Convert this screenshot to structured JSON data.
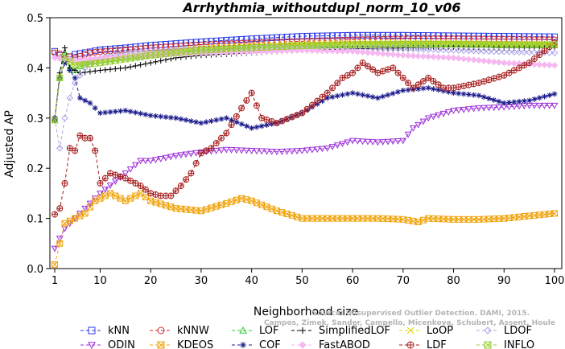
{
  "chart_data": {
    "type": "line",
    "title": "Arrhythmia_withoutdupl_norm_10_v06",
    "xlabel": "Neighborhood size",
    "ylabel": "Adjusted AP",
    "xlim": [
      1,
      100
    ],
    "ylim": [
      0.0,
      0.5
    ],
    "xticks": [
      1,
      10,
      20,
      30,
      40,
      50,
      60,
      70,
      80,
      90,
      100
    ],
    "yticks": [
      "0.0",
      "0.1",
      "0.2",
      "0.3",
      "0.4",
      "0.5"
    ],
    "grid": false,
    "legend_position": "bottom",
    "watermark": [
      "Source: Unsupervised Outlier Detection. DAMI, 2015.",
      "Campos, Zimek, Sander, Campello, Micenkova, Schubert, Assent, Houle"
    ],
    "series": [
      {
        "name": "kNN",
        "color": "#2b3ae6",
        "marker": "square",
        "points": [
          [
            1,
            0.433
          ],
          [
            2,
            0.425
          ],
          [
            3,
            0.418
          ],
          [
            5,
            0.427
          ],
          [
            8,
            0.432
          ],
          [
            10,
            0.436
          ],
          [
            15,
            0.44
          ],
          [
            20,
            0.445
          ],
          [
            30,
            0.452
          ],
          [
            40,
            0.458
          ],
          [
            50,
            0.463
          ],
          [
            60,
            0.465
          ],
          [
            70,
            0.465
          ],
          [
            80,
            0.464
          ],
          [
            90,
            0.463
          ],
          [
            100,
            0.462
          ]
        ]
      },
      {
        "name": "kNNW",
        "color": "#d62728",
        "marker": "circle",
        "points": [
          [
            1,
            0.43
          ],
          [
            2,
            0.428
          ],
          [
            3,
            0.425
          ],
          [
            5,
            0.42
          ],
          [
            8,
            0.43
          ],
          [
            10,
            0.432
          ],
          [
            15,
            0.436
          ],
          [
            20,
            0.44
          ],
          [
            30,
            0.446
          ],
          [
            40,
            0.45
          ],
          [
            50,
            0.453
          ],
          [
            60,
            0.456
          ],
          [
            70,
            0.458
          ],
          [
            80,
            0.458
          ],
          [
            90,
            0.457
          ],
          [
            100,
            0.456
          ]
        ]
      },
      {
        "name": "LOF",
        "color": "#2ecc2e",
        "marker": "triangle-up",
        "points": [
          [
            1,
            0.296
          ],
          [
            2,
            0.38
          ],
          [
            3,
            0.43
          ],
          [
            4,
            0.4
          ],
          [
            5,
            0.395
          ],
          [
            7,
            0.41
          ],
          [
            10,
            0.415
          ],
          [
            15,
            0.42
          ],
          [
            20,
            0.425
          ],
          [
            30,
            0.435
          ],
          [
            40,
            0.44
          ],
          [
            50,
            0.445
          ],
          [
            60,
            0.447
          ],
          [
            70,
            0.448
          ],
          [
            80,
            0.448
          ],
          [
            90,
            0.447
          ],
          [
            100,
            0.447
          ]
        ]
      },
      {
        "name": "SimplifiedLOF",
        "color": "#000000",
        "marker": "plus",
        "points": [
          [
            1,
            0.296
          ],
          [
            2,
            0.39
          ],
          [
            3,
            0.44
          ],
          [
            4,
            0.4
          ],
          [
            6,
            0.39
          ],
          [
            10,
            0.395
          ],
          [
            15,
            0.4
          ],
          [
            20,
            0.41
          ],
          [
            25,
            0.42
          ],
          [
            30,
            0.425
          ],
          [
            40,
            0.43
          ],
          [
            50,
            0.435
          ],
          [
            60,
            0.438
          ],
          [
            70,
            0.44
          ],
          [
            80,
            0.442
          ],
          [
            90,
            0.44
          ],
          [
            100,
            0.44
          ]
        ]
      },
      {
        "name": "LoOP",
        "color": "#e6d800",
        "marker": "x",
        "points": [
          [
            1,
            0.296
          ],
          [
            2,
            0.38
          ],
          [
            3,
            0.42
          ],
          [
            5,
            0.41
          ],
          [
            10,
            0.415
          ],
          [
            20,
            0.43
          ],
          [
            30,
            0.44
          ],
          [
            40,
            0.445
          ],
          [
            50,
            0.448
          ],
          [
            60,
            0.45
          ],
          [
            70,
            0.45
          ],
          [
            80,
            0.45
          ],
          [
            90,
            0.448
          ],
          [
            100,
            0.448
          ]
        ]
      },
      {
        "name": "LDOF",
        "color": "#a9a2e6",
        "marker": "diamond",
        "points": [
          [
            1,
            0.3
          ],
          [
            2,
            0.24
          ],
          [
            3,
            0.3
          ],
          [
            4,
            0.34
          ],
          [
            5,
            0.37
          ],
          [
            7,
            0.4
          ],
          [
            10,
            0.42
          ],
          [
            15,
            0.43
          ],
          [
            20,
            0.435
          ],
          [
            30,
            0.438
          ],
          [
            40,
            0.44
          ],
          [
            50,
            0.44
          ],
          [
            60,
            0.44
          ],
          [
            70,
            0.438
          ],
          [
            80,
            0.435
          ],
          [
            90,
            0.432
          ],
          [
            100,
            0.43
          ]
        ]
      },
      {
        "name": "ODIN",
        "color": "#9b2fd9",
        "marker": "triangle-down",
        "points": [
          [
            1,
            0.04
          ],
          [
            2,
            0.06
          ],
          [
            3,
            0.08
          ],
          [
            5,
            0.1
          ],
          [
            8,
            0.13
          ],
          [
            10,
            0.15
          ],
          [
            15,
            0.19
          ],
          [
            18,
            0.215
          ],
          [
            20,
            0.215
          ],
          [
            25,
            0.225
          ],
          [
            30,
            0.232
          ],
          [
            35,
            0.237
          ],
          [
            40,
            0.235
          ],
          [
            45,
            0.233
          ],
          [
            50,
            0.235
          ],
          [
            55,
            0.24
          ],
          [
            60,
            0.255
          ],
          [
            65,
            0.252
          ],
          [
            70,
            0.255
          ],
          [
            72,
            0.28
          ],
          [
            75,
            0.3
          ],
          [
            80,
            0.315
          ],
          [
            85,
            0.32
          ],
          [
            90,
            0.322
          ],
          [
            95,
            0.325
          ],
          [
            100,
            0.325
          ]
        ]
      },
      {
        "name": "KDEOS",
        "color": "#f0a30a",
        "marker": "square-x",
        "points": [
          [
            1,
            0.008
          ],
          [
            2,
            0.05
          ],
          [
            3,
            0.09
          ],
          [
            5,
            0.1
          ],
          [
            7,
            0.11
          ],
          [
            9,
            0.135
          ],
          [
            12,
            0.15
          ],
          [
            15,
            0.135
          ],
          [
            18,
            0.15
          ],
          [
            20,
            0.135
          ],
          [
            25,
            0.12
          ],
          [
            30,
            0.115
          ],
          [
            35,
            0.13
          ],
          [
            38,
            0.14
          ],
          [
            40,
            0.135
          ],
          [
            45,
            0.115
          ],
          [
            50,
            0.1
          ],
          [
            55,
            0.1
          ],
          [
            60,
            0.1
          ],
          [
            65,
            0.1
          ],
          [
            70,
            0.098
          ],
          [
            73,
            0.093
          ],
          [
            75,
            0.1
          ],
          [
            80,
            0.098
          ],
          [
            85,
            0.098
          ],
          [
            90,
            0.1
          ],
          [
            95,
            0.105
          ],
          [
            100,
            0.11
          ]
        ]
      },
      {
        "name": "COF",
        "color": "#1a1a8c",
        "marker": "asterisk",
        "points": [
          [
            1,
            0.3
          ],
          [
            2,
            0.38
          ],
          [
            3,
            0.41
          ],
          [
            4,
            0.395
          ],
          [
            5,
            0.38
          ],
          [
            6,
            0.34
          ],
          [
            8,
            0.33
          ],
          [
            10,
            0.31
          ],
          [
            15,
            0.315
          ],
          [
            20,
            0.305
          ],
          [
            25,
            0.3
          ],
          [
            30,
            0.29
          ],
          [
            35,
            0.3
          ],
          [
            40,
            0.28
          ],
          [
            45,
            0.29
          ],
          [
            50,
            0.31
          ],
          [
            55,
            0.34
          ],
          [
            60,
            0.35
          ],
          [
            65,
            0.34
          ],
          [
            70,
            0.355
          ],
          [
            75,
            0.36
          ],
          [
            80,
            0.35
          ],
          [
            85,
            0.345
          ],
          [
            90,
            0.33
          ],
          [
            95,
            0.335
          ],
          [
            100,
            0.348
          ]
        ]
      },
      {
        "name": "FastABOD",
        "color": "#f5b8f0",
        "marker": "diamond-filled",
        "points": [
          [
            1,
            0.42
          ],
          [
            5,
            0.415
          ],
          [
            10,
            0.42
          ],
          [
            20,
            0.425
          ],
          [
            30,
            0.43
          ],
          [
            40,
            0.432
          ],
          [
            50,
            0.435
          ],
          [
            60,
            0.433
          ],
          [
            70,
            0.425
          ],
          [
            80,
            0.42
          ],
          [
            90,
            0.41
          ],
          [
            100,
            0.405
          ]
        ]
      },
      {
        "name": "LDF",
        "color": "#a51d1d",
        "marker": "circle-plus",
        "points": [
          [
            1,
            0.108
          ],
          [
            2,
            0.12
          ],
          [
            3,
            0.17
          ],
          [
            4,
            0.24
          ],
          [
            5,
            0.235
          ],
          [
            6,
            0.265
          ],
          [
            7,
            0.26
          ],
          [
            8,
            0.26
          ],
          [
            9,
            0.235
          ],
          [
            10,
            0.17
          ],
          [
            12,
            0.19
          ],
          [
            15,
            0.18
          ],
          [
            18,
            0.165
          ],
          [
            20,
            0.15
          ],
          [
            22,
            0.145
          ],
          [
            24,
            0.145
          ],
          [
            26,
            0.165
          ],
          [
            28,
            0.19
          ],
          [
            30,
            0.23
          ],
          [
            32,
            0.24
          ],
          [
            35,
            0.27
          ],
          [
            38,
            0.32
          ],
          [
            40,
            0.35
          ],
          [
            42,
            0.3
          ],
          [
            45,
            0.29
          ],
          [
            50,
            0.31
          ],
          [
            55,
            0.35
          ],
          [
            58,
            0.38
          ],
          [
            60,
            0.39
          ],
          [
            62,
            0.41
          ],
          [
            65,
            0.39
          ],
          [
            68,
            0.4
          ],
          [
            70,
            0.38
          ],
          [
            72,
            0.36
          ],
          [
            75,
            0.38
          ],
          [
            78,
            0.36
          ],
          [
            80,
            0.36
          ],
          [
            85,
            0.37
          ],
          [
            90,
            0.385
          ],
          [
            95,
            0.41
          ],
          [
            100,
            0.45
          ]
        ]
      },
      {
        "name": "INFLO",
        "color": "#9acd32",
        "marker": "square-x",
        "points": [
          [
            1,
            0.296
          ],
          [
            2,
            0.38
          ],
          [
            3,
            0.42
          ],
          [
            5,
            0.405
          ],
          [
            10,
            0.41
          ],
          [
            20,
            0.425
          ],
          [
            30,
            0.435
          ],
          [
            40,
            0.44
          ],
          [
            50,
            0.444
          ],
          [
            60,
            0.446
          ],
          [
            70,
            0.447
          ],
          [
            80,
            0.447
          ],
          [
            90,
            0.446
          ],
          [
            100,
            0.446
          ]
        ]
      }
    ]
  }
}
